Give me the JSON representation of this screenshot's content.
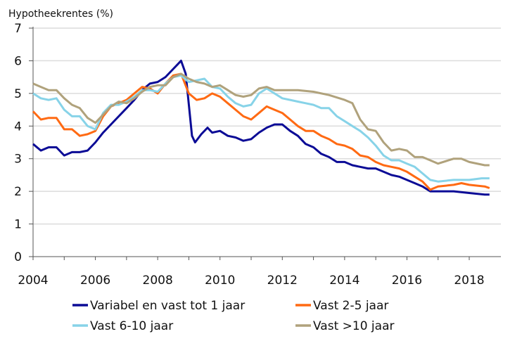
{
  "chart_data": {
    "type": "line",
    "title": "Hypotheekrentes (%)",
    "xlabel": "",
    "ylabel": "",
    "xlim": [
      2004,
      2018.85
    ],
    "ylim": [
      0,
      7
    ],
    "xticks": [
      2004,
      2006,
      2008,
      2010,
      2012,
      2014,
      2016,
      2018
    ],
    "yticks": [
      0,
      1,
      2,
      3,
      4,
      5,
      6,
      7
    ],
    "grid": "horizontal",
    "legend_position": "bottom",
    "series": [
      {
        "name": "Variabel en vast tot 1 jaar",
        "color": "#0b0b96",
        "points": [
          [
            2004,
            3.45
          ],
          [
            2004.25,
            3.25
          ],
          [
            2004.5,
            3.35
          ],
          [
            2004.75,
            3.35
          ],
          [
            2005,
            3.1
          ],
          [
            2005.25,
            3.2
          ],
          [
            2005.5,
            3.2
          ],
          [
            2005.75,
            3.25
          ],
          [
            2006,
            3.5
          ],
          [
            2006.25,
            3.8
          ],
          [
            2006.5,
            4.05
          ],
          [
            2006.75,
            4.3
          ],
          [
            2007,
            4.55
          ],
          [
            2007.25,
            4.8
          ],
          [
            2007.5,
            5.1
          ],
          [
            2007.75,
            5.3
          ],
          [
            2008,
            5.35
          ],
          [
            2008.25,
            5.5
          ],
          [
            2008.5,
            5.75
          ],
          [
            2008.75,
            6.0
          ],
          [
            2008.9,
            5.6
          ],
          [
            2009.1,
            3.7
          ],
          [
            2009.2,
            3.5
          ],
          [
            2009.4,
            3.75
          ],
          [
            2009.6,
            3.95
          ],
          [
            2009.75,
            3.8
          ],
          [
            2010,
            3.85
          ],
          [
            2010.25,
            3.7
          ],
          [
            2010.5,
            3.65
          ],
          [
            2010.75,
            3.55
          ],
          [
            2011,
            3.6
          ],
          [
            2011.25,
            3.8
          ],
          [
            2011.5,
            3.95
          ],
          [
            2011.75,
            4.05
          ],
          [
            2012,
            4.05
          ],
          [
            2012.25,
            3.85
          ],
          [
            2012.5,
            3.7
          ],
          [
            2012.75,
            3.45
          ],
          [
            2013,
            3.35
          ],
          [
            2013.25,
            3.15
          ],
          [
            2013.5,
            3.05
          ],
          [
            2013.75,
            2.9
          ],
          [
            2014,
            2.9
          ],
          [
            2014.25,
            2.8
          ],
          [
            2014.5,
            2.75
          ],
          [
            2014.75,
            2.7
          ],
          [
            2015,
            2.7
          ],
          [
            2015.25,
            2.6
          ],
          [
            2015.5,
            2.5
          ],
          [
            2015.75,
            2.45
          ],
          [
            2016,
            2.35
          ],
          [
            2016.25,
            2.25
          ],
          [
            2016.5,
            2.15
          ],
          [
            2016.75,
            2.0
          ],
          [
            2017,
            2.0
          ],
          [
            2017.5,
            2.0
          ],
          [
            2018,
            1.95
          ],
          [
            2018.5,
            1.9
          ],
          [
            2018.65,
            1.9
          ]
        ]
      },
      {
        "name": "Vast 2-5 jaar",
        "color": "#ff6a13",
        "points": [
          [
            2004,
            4.45
          ],
          [
            2004.25,
            4.2
          ],
          [
            2004.5,
            4.25
          ],
          [
            2004.75,
            4.25
          ],
          [
            2005,
            3.9
          ],
          [
            2005.25,
            3.9
          ],
          [
            2005.5,
            3.7
          ],
          [
            2005.75,
            3.75
          ],
          [
            2006,
            3.85
          ],
          [
            2006.25,
            4.3
          ],
          [
            2006.5,
            4.6
          ],
          [
            2006.75,
            4.7
          ],
          [
            2007,
            4.8
          ],
          [
            2007.25,
            5.0
          ],
          [
            2007.5,
            5.2
          ],
          [
            2007.75,
            5.15
          ],
          [
            2008,
            5.0
          ],
          [
            2008.25,
            5.3
          ],
          [
            2008.5,
            5.55
          ],
          [
            2008.75,
            5.6
          ],
          [
            2009,
            5.0
          ],
          [
            2009.25,
            4.8
          ],
          [
            2009.5,
            4.85
          ],
          [
            2009.75,
            5.0
          ],
          [
            2010,
            4.9
          ],
          [
            2010.25,
            4.7
          ],
          [
            2010.5,
            4.5
          ],
          [
            2010.75,
            4.3
          ],
          [
            2011,
            4.2
          ],
          [
            2011.25,
            4.4
          ],
          [
            2011.5,
            4.6
          ],
          [
            2011.75,
            4.5
          ],
          [
            2012,
            4.4
          ],
          [
            2012.25,
            4.2
          ],
          [
            2012.5,
            4.0
          ],
          [
            2012.75,
            3.85
          ],
          [
            2013,
            3.85
          ],
          [
            2013.25,
            3.7
          ],
          [
            2013.5,
            3.6
          ],
          [
            2013.75,
            3.45
          ],
          [
            2014,
            3.4
          ],
          [
            2014.25,
            3.3
          ],
          [
            2014.5,
            3.1
          ],
          [
            2014.75,
            3.05
          ],
          [
            2015,
            2.9
          ],
          [
            2015.25,
            2.8
          ],
          [
            2015.5,
            2.75
          ],
          [
            2015.75,
            2.7
          ],
          [
            2016,
            2.6
          ],
          [
            2016.25,
            2.45
          ],
          [
            2016.5,
            2.3
          ],
          [
            2016.75,
            2.05
          ],
          [
            2017,
            2.15
          ],
          [
            2017.5,
            2.2
          ],
          [
            2017.75,
            2.25
          ],
          [
            2018,
            2.2
          ],
          [
            2018.5,
            2.15
          ],
          [
            2018.65,
            2.1
          ]
        ]
      },
      {
        "name": "Vast 6-10 jaar",
        "color": "#87d3e8",
        "points": [
          [
            2004,
            5.0
          ],
          [
            2004.25,
            4.85
          ],
          [
            2004.5,
            4.8
          ],
          [
            2004.75,
            4.85
          ],
          [
            2005,
            4.5
          ],
          [
            2005.25,
            4.3
          ],
          [
            2005.5,
            4.3
          ],
          [
            2005.75,
            4.0
          ],
          [
            2006,
            3.9
          ],
          [
            2006.25,
            4.4
          ],
          [
            2006.5,
            4.65
          ],
          [
            2006.75,
            4.65
          ],
          [
            2007,
            4.75
          ],
          [
            2007.25,
            4.9
          ],
          [
            2007.5,
            5.1
          ],
          [
            2007.75,
            5.1
          ],
          [
            2008,
            5.05
          ],
          [
            2008.25,
            5.3
          ],
          [
            2008.5,
            5.5
          ],
          [
            2008.75,
            5.55
          ],
          [
            2009,
            5.35
          ],
          [
            2009.5,
            5.45
          ],
          [
            2009.75,
            5.2
          ],
          [
            2010,
            5.15
          ],
          [
            2010.25,
            4.9
          ],
          [
            2010.5,
            4.7
          ],
          [
            2010.75,
            4.6
          ],
          [
            2011,
            4.65
          ],
          [
            2011.25,
            5.0
          ],
          [
            2011.5,
            5.15
          ],
          [
            2011.75,
            5.0
          ],
          [
            2012,
            4.85
          ],
          [
            2012.25,
            4.8
          ],
          [
            2012.5,
            4.75
          ],
          [
            2012.75,
            4.7
          ],
          [
            2013,
            4.65
          ],
          [
            2013.25,
            4.55
          ],
          [
            2013.5,
            4.55
          ],
          [
            2013.75,
            4.3
          ],
          [
            2014,
            4.15
          ],
          [
            2014.25,
            4.0
          ],
          [
            2014.5,
            3.85
          ],
          [
            2014.75,
            3.65
          ],
          [
            2015,
            3.4
          ],
          [
            2015.25,
            3.1
          ],
          [
            2015.5,
            2.95
          ],
          [
            2015.75,
            2.95
          ],
          [
            2016,
            2.85
          ],
          [
            2016.25,
            2.75
          ],
          [
            2016.5,
            2.55
          ],
          [
            2016.75,
            2.35
          ],
          [
            2017,
            2.3
          ],
          [
            2017.5,
            2.35
          ],
          [
            2018,
            2.35
          ],
          [
            2018.4,
            2.4
          ],
          [
            2018.65,
            2.4
          ]
        ]
      },
      {
        "name": "Vast >10 jaar",
        "color": "#b0a27c",
        "points": [
          [
            2004,
            5.3
          ],
          [
            2004.25,
            5.2
          ],
          [
            2004.5,
            5.1
          ],
          [
            2004.75,
            5.1
          ],
          [
            2005,
            4.85
          ],
          [
            2005.25,
            4.65
          ],
          [
            2005.5,
            4.55
          ],
          [
            2005.75,
            4.25
          ],
          [
            2006,
            4.1
          ],
          [
            2006.25,
            4.35
          ],
          [
            2006.5,
            4.6
          ],
          [
            2006.75,
            4.75
          ],
          [
            2007,
            4.7
          ],
          [
            2007.25,
            4.85
          ],
          [
            2007.5,
            5.05
          ],
          [
            2007.75,
            5.2
          ],
          [
            2008,
            5.25
          ],
          [
            2008.25,
            5.25
          ],
          [
            2008.5,
            5.5
          ],
          [
            2008.75,
            5.6
          ],
          [
            2009,
            5.45
          ],
          [
            2009.25,
            5.35
          ],
          [
            2009.5,
            5.3
          ],
          [
            2009.75,
            5.2
          ],
          [
            2010,
            5.25
          ],
          [
            2010.25,
            5.1
          ],
          [
            2010.5,
            4.95
          ],
          [
            2010.75,
            4.9
          ],
          [
            2011,
            4.95
          ],
          [
            2011.25,
            5.15
          ],
          [
            2011.5,
            5.2
          ],
          [
            2011.75,
            5.1
          ],
          [
            2012,
            5.1
          ],
          [
            2012.5,
            5.1
          ],
          [
            2013,
            5.05
          ],
          [
            2013.5,
            4.95
          ],
          [
            2014,
            4.8
          ],
          [
            2014.25,
            4.7
          ],
          [
            2014.5,
            4.2
          ],
          [
            2014.75,
            3.9
          ],
          [
            2015,
            3.85
          ],
          [
            2015.25,
            3.5
          ],
          [
            2015.5,
            3.25
          ],
          [
            2015.75,
            3.3
          ],
          [
            2016,
            3.25
          ],
          [
            2016.25,
            3.05
          ],
          [
            2016.5,
            3.05
          ],
          [
            2016.75,
            2.95
          ],
          [
            2017,
            2.85
          ],
          [
            2017.5,
            3.0
          ],
          [
            2017.75,
            3.0
          ],
          [
            2018,
            2.9
          ],
          [
            2018.5,
            2.8
          ],
          [
            2018.65,
            2.8
          ]
        ]
      }
    ]
  }
}
